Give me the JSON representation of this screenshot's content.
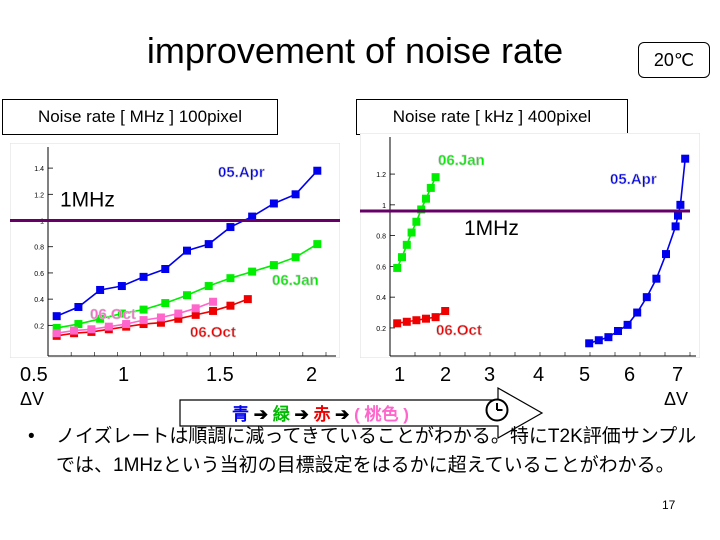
{
  "title": "improvement of noise rate",
  "temperature": "20℃",
  "left_header": "Noise rate [ MHz ] 100pixel",
  "right_header": "Noise rate [ kHz ] 400pixel",
  "x_ticks": [
    "0.5",
    "1",
    "1.5",
    "2",
    "1",
    "2",
    "3",
    "4",
    "5",
    "6",
    "7"
  ],
  "dv_label": "ΔV",
  "arrow": {
    "g1": "青",
    "g2": "緑",
    "g3": "赤",
    "g4": "( 桃色 )",
    "sep": "➔"
  },
  "bullet": "ノイズレートは順調に減ってきていることがわかる。特にT2K評価サンプルでは、1MHzという当初の目標設定をはるかに超えていることがわかる。",
  "page_number": "17",
  "colors": {
    "blue": "#0000ee",
    "green": "#00ee00",
    "red": "#ee0000",
    "pink": "#ff66cc",
    "purple": "#660066",
    "label": "#cccccc"
  },
  "chart_data": [
    {
      "type": "line",
      "title": "Noise rate [ MHz ] 100pixel",
      "ylim": [
        0.05,
        1.5
      ],
      "yticks": [
        "0.2",
        "0.4",
        "0.6",
        "0.8",
        "1",
        "1.2",
        "1.4"
      ],
      "reference_line": {
        "value": 1.0,
        "label": "1MHz"
      },
      "series": [
        {
          "name": "05.Apr",
          "color": "blue",
          "x": [
            0.5,
            0.625,
            0.75,
            0.875,
            1.0,
            1.125,
            1.25,
            1.375,
            1.5,
            1.625,
            1.75,
            1.875,
            2.0
          ],
          "y": [
            0.27,
            0.34,
            0.47,
            0.5,
            0.57,
            0.63,
            0.77,
            0.82,
            0.95,
            1.03,
            1.13,
            1.2,
            1.38
          ]
        },
        {
          "name": "06.Jan",
          "color": "green",
          "x": [
            0.5,
            0.625,
            0.75,
            0.875,
            1.0,
            1.125,
            1.25,
            1.375,
            1.5,
            1.625,
            1.75,
            1.875,
            2.0
          ],
          "y": [
            0.18,
            0.21,
            0.25,
            0.29,
            0.32,
            0.37,
            0.43,
            0.5,
            0.56,
            0.61,
            0.66,
            0.72,
            0.82
          ]
        },
        {
          "name": "06.Oct",
          "color": "red",
          "x": [
            0.5,
            0.6,
            0.7,
            0.8,
            0.9,
            1.0,
            1.1,
            1.2,
            1.3,
            1.4,
            1.5,
            1.6
          ],
          "y": [
            0.12,
            0.14,
            0.15,
            0.17,
            0.19,
            0.21,
            0.22,
            0.25,
            0.28,
            0.31,
            0.35,
            0.4
          ]
        },
        {
          "name": "06.Oct",
          "color": "pink",
          "x": [
            0.5,
            0.6,
            0.7,
            0.8,
            0.9,
            1.0,
            1.1,
            1.2,
            1.3,
            1.4
          ],
          "y": [
            0.14,
            0.16,
            0.17,
            0.19,
            0.21,
            0.24,
            0.26,
            0.29,
            0.33,
            0.38
          ]
        }
      ],
      "labels": [
        {
          "text": "05.Apr",
          "color": "blue"
        },
        {
          "text": "06.Jan",
          "color": "green"
        },
        {
          "text": "06.Oct",
          "color": "red"
        },
        {
          "text": "06.Oct",
          "color": "pink"
        }
      ]
    },
    {
      "type": "line",
      "title": "Noise rate [ kHz ] 400pixel",
      "ylim": [
        0.05,
        1.35
      ],
      "yticks": [
        "0.2",
        "0.4",
        "0.6",
        "0.8",
        "1",
        "1.2"
      ],
      "reference_line": {
        "value": 0.96,
        "label": "1MHz"
      },
      "series": [
        {
          "name": "06.Jan",
          "color": "green",
          "x": [
            1.0,
            1.1,
            1.2,
            1.3,
            1.4,
            1.5,
            1.6,
            1.7,
            1.8
          ],
          "y": [
            0.59,
            0.66,
            0.74,
            0.82,
            0.89,
            0.97,
            1.04,
            1.11,
            1.18
          ]
        },
        {
          "name": "06.Oct",
          "color": "red",
          "x": [
            1.0,
            1.2,
            1.4,
            1.6,
            1.8,
            2.0
          ],
          "y": [
            0.23,
            0.24,
            0.25,
            0.26,
            0.27,
            0.31
          ]
        },
        {
          "name": "05.Apr",
          "color": "blue",
          "x": [
            5.0,
            5.2,
            5.4,
            5.6,
            5.8,
            6.0,
            6.2,
            6.4,
            6.6,
            6.8,
            6.85,
            6.9,
            7.0
          ],
          "y": [
            0.1,
            0.12,
            0.14,
            0.18,
            0.22,
            0.3,
            0.4,
            0.52,
            0.68,
            0.86,
            0.93,
            1.0,
            1.3
          ]
        }
      ],
      "labels": [
        {
          "text": "06.Jan",
          "color": "green"
        },
        {
          "text": "05.Apr",
          "color": "blue"
        },
        {
          "text": "06.Oct",
          "color": "red"
        }
      ]
    }
  ]
}
